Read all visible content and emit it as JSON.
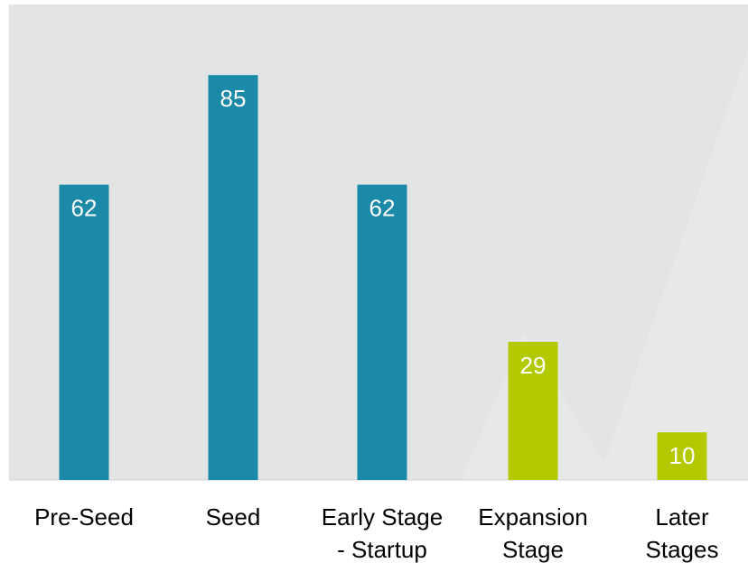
{
  "chart_data": {
    "type": "bar",
    "categories": [
      [
        "Pre-Seed"
      ],
      [
        "Seed"
      ],
      [
        "Early Stage",
        "- Startup"
      ],
      [
        "Expansion",
        "Stage"
      ],
      [
        "Later",
        "Stages"
      ]
    ],
    "values": [
      62,
      85,
      62,
      29,
      10
    ],
    "bar_colors": [
      "#1a8aa8",
      "#1a8aa8",
      "#1a8aa8",
      "#b5c900",
      "#b5c900"
    ],
    "background_color": "#e3e4e4",
    "value_labels_color": "#ffffff",
    "category_label_color": "#000000",
    "ylim": [
      0,
      100
    ],
    "grid": false,
    "legend": "none",
    "title": "",
    "xlabel": "",
    "ylabel": ""
  }
}
